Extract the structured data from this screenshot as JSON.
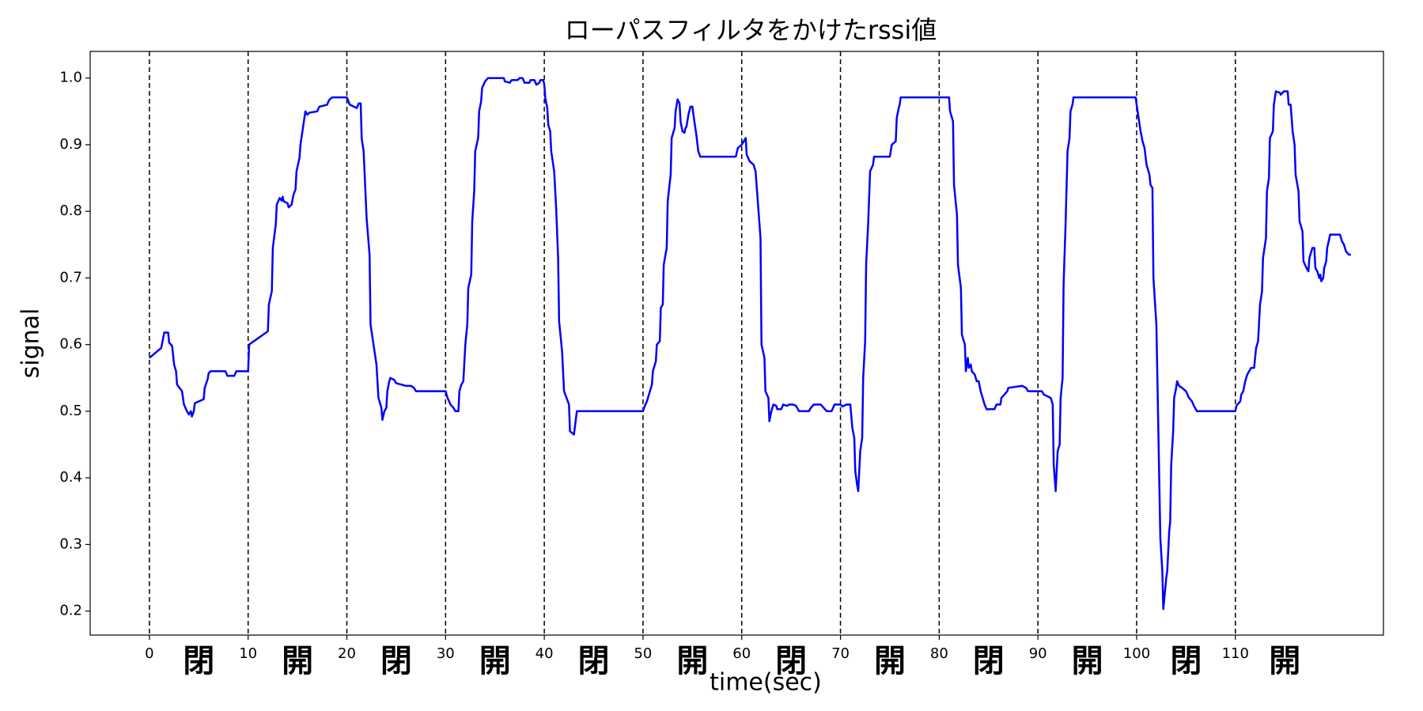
{
  "chart_data": {
    "type": "line",
    "title": "ローパスフィルタをかけたrssi値",
    "x_label": "time(sec)",
    "y_label": "signal",
    "xlim": [
      -6,
      125
    ],
    "ylim": [
      0.164,
      1.04
    ],
    "xticks": [
      0,
      10,
      20,
      30,
      40,
      50,
      60,
      70,
      80,
      90,
      100,
      110
    ],
    "yticks": [
      0.2,
      0.3,
      0.4,
      0.5,
      0.6,
      0.7,
      0.8,
      0.9,
      {
        "value": 1,
        "label": "1.0"
      }
    ],
    "vlines": [
      0,
      10,
      20,
      30,
      40,
      50,
      60,
      70,
      80,
      90,
      100,
      110
    ],
    "vline_color": "#000000",
    "annotations": [
      {
        "x": 5,
        "text": "閉"
      },
      {
        "x": 15,
        "text": "開"
      },
      {
        "x": 25,
        "text": "閉"
      },
      {
        "x": 35,
        "text": "開"
      },
      {
        "x": 45,
        "text": "閉"
      },
      {
        "x": 55,
        "text": "開"
      },
      {
        "x": 65,
        "text": "閉"
      },
      {
        "x": 75,
        "text": "開"
      },
      {
        "x": 85,
        "text": "閉"
      },
      {
        "x": 95,
        "text": "開"
      },
      {
        "x": 105,
        "text": "閉"
      },
      {
        "x": 115,
        "text": "開"
      }
    ],
    "x": [
      0,
      1.2,
      1.5,
      1.9,
      2.0,
      2.3,
      2.5,
      2.7,
      2.8,
      3.3,
      3.5,
      3.8,
      4.0,
      4.2,
      4.3,
      4.5,
      4.6,
      5.5,
      5.6,
      5.9,
      6.0,
      6.2,
      7.7,
      7.9,
      8.6,
      8.8,
      10.0,
      10.1,
      12.0,
      12.1,
      12.4,
      12.5,
      12.8,
      12.9,
      13.2,
      13.4,
      13.5,
      13.6,
      14.0,
      14.1,
      14.4,
      14.6,
      14.8,
      14.9,
      15.2,
      15.3,
      15.6,
      15.8,
      16.0,
      16.2,
      17.0,
      17.2,
      18.0,
      18.2,
      18.5,
      20.0,
      20.3,
      21.0,
      21.2,
      21.4,
      21.5,
      21.7,
      22.0,
      22.3,
      22.4,
      23.0,
      23.2,
      23.5,
      23.6,
      23.8,
      24.0,
      24.1,
      24.3,
      24.4,
      24.8,
      25.0,
      25.5,
      26.0,
      26.5,
      26.8,
      27.0,
      30.0,
      30.2,
      30.5,
      30.8,
      31.0,
      31.3,
      31.4,
      31.6,
      31.8,
      32.0,
      32.2,
      32.3,
      32.6,
      32.7,
      32.9,
      33.0,
      33.3,
      33.4,
      33.6,
      33.7,
      34.0,
      34.3,
      35.9,
      36.0,
      36.5,
      36.7,
      37.3,
      37.5,
      37.8,
      38.0,
      38.5,
      38.6,
      39.0,
      39.2,
      39.5,
      39.6,
      39.9,
      40.0,
      40.1,
      40.3,
      40.4,
      40.6,
      40.7,
      41.0,
      41.2,
      41.4,
      41.5,
      41.8,
      42.0,
      42.5,
      42.6,
      43.0,
      43.3,
      50.0,
      50.1,
      50.4,
      50.6,
      50.9,
      51.0,
      51.3,
      51.4,
      51.7,
      51.8,
      52.0,
      52.1,
      52.4,
      52.5,
      52.8,
      52.9,
      53.2,
      53.3,
      53.5,
      53.7,
      53.8,
      54.0,
      54.2,
      54.3,
      54.4,
      54.6,
      54.8,
      55.0,
      55.2,
      55.4,
      55.6,
      55.8,
      59.4,
      59.6,
      60.0,
      60.2,
      60.4,
      60.5,
      60.8,
      61.2,
      61.4,
      61.7,
      61.9,
      62.0,
      62.3,
      62.4,
      62.7,
      62.8,
      63.0,
      63.2,
      63.5,
      63.6,
      64.0,
      64.2,
      64.6,
      64.8,
      65.2,
      65.5,
      65.8,
      66.8,
      67.0,
      67.3,
      68.0,
      68.3,
      68.6,
      69.1,
      69.4,
      70.0,
      70.2,
      70.6,
      71.0,
      71.2,
      71.4,
      71.5,
      71.7,
      71.8,
      72.0,
      72.2,
      72.3,
      72.5,
      72.6,
      72.8,
      73.0,
      73.3,
      73.4,
      75.0,
      75.2,
      75.6,
      75.7,
      75.9,
      76.0,
      76.1,
      81.0,
      81.1,
      81.4,
      81.5,
      81.8,
      81.9,
      82.2,
      82.3,
      82.6,
      82.7,
      82.9,
      83.0,
      83.2,
      83.3,
      83.6,
      83.8,
      84.0,
      84.2,
      84.4,
      84.6,
      84.8,
      85.6,
      85.8,
      86.2,
      86.3,
      86.6,
      86.9,
      87.0,
      88.4,
      88.8,
      89.0,
      90.4,
      90.6,
      91.3,
      91.5,
      91.6,
      91.8,
      92.0,
      92.2,
      92.3,
      92.5,
      92.6,
      92.8,
      93.0,
      93.2,
      93.3,
      93.5,
      93.6,
      99.9,
      100.0,
      100.2,
      100.4,
      100.6,
      100.8,
      101.0,
      101.3,
      101.4,
      101.6,
      101.7,
      102.0,
      102.2,
      102.4,
      102.6,
      102.7,
      103.0,
      103.1,
      103.3,
      103.4,
      103.5,
      103.7,
      103.8,
      104.0,
      104.1,
      104.3,
      104.6,
      105.0,
      105.3,
      105.6,
      105.8,
      106.1,
      110.0,
      110.1,
      110.5,
      110.6,
      110.8,
      111.0,
      111.2,
      111.4,
      111.6,
      111.9,
      112.1,
      112.3,
      112.5,
      112.7,
      112.8,
      113.1,
      113.2,
      113.4,
      113.5,
      113.8,
      113.9,
      114.1,
      114.5,
      114.6,
      114.9,
      115.3,
      115.4,
      115.6,
      115.8,
      116.0,
      116.1,
      116.4,
      116.5,
      116.8,
      116.9,
      117.2,
      117.4,
      117.5,
      117.8,
      118.0,
      118.1,
      118.3,
      118.5,
      118.6,
      118.7,
      118.9,
      119.0,
      119.2,
      119.3,
      119.6,
      120.6,
      120.8,
      121.0,
      121.2,
      121.5,
      121.7
    ],
    "series": [
      {
        "color": "#0000ff",
        "values": [
          0.58,
          0.595,
          0.618,
          0.618,
          0.603,
          0.598,
          0.57,
          0.56,
          0.54,
          0.53,
          0.51,
          0.5,
          0.495,
          0.5,
          0.492,
          0.5,
          0.512,
          0.518,
          0.535,
          0.548,
          0.557,
          0.56,
          0.56,
          0.553,
          0.553,
          0.56,
          0.56,
          0.6,
          0.62,
          0.66,
          0.68,
          0.745,
          0.78,
          0.81,
          0.82,
          0.816,
          0.822,
          0.815,
          0.812,
          0.806,
          0.81,
          0.825,
          0.833,
          0.86,
          0.88,
          0.9,
          0.93,
          0.95,
          0.945,
          0.948,
          0.95,
          0.957,
          0.96,
          0.967,
          0.971,
          0.971,
          0.96,
          0.955,
          0.962,
          0.962,
          0.91,
          0.89,
          0.79,
          0.735,
          0.63,
          0.57,
          0.52,
          0.505,
          0.487,
          0.5,
          0.505,
          0.53,
          0.545,
          0.55,
          0.547,
          0.542,
          0.54,
          0.538,
          0.538,
          0.535,
          0.53,
          0.53,
          0.52,
          0.51,
          0.505,
          0.5,
          0.5,
          0.53,
          0.54,
          0.545,
          0.6,
          0.63,
          0.685,
          0.705,
          0.785,
          0.83,
          0.89,
          0.91,
          0.95,
          0.965,
          0.985,
          0.995,
          1.0,
          1.0,
          0.995,
          0.993,
          0.997,
          0.997,
          1.0,
          1.0,
          0.993,
          0.993,
          0.997,
          0.997,
          0.99,
          0.993,
          0.997,
          0.997,
          0.99,
          0.97,
          0.955,
          0.93,
          0.92,
          0.89,
          0.86,
          0.805,
          0.73,
          0.635,
          0.59,
          0.53,
          0.51,
          0.47,
          0.465,
          0.5,
          0.5,
          0.505,
          0.515,
          0.525,
          0.54,
          0.56,
          0.575,
          0.6,
          0.605,
          0.655,
          0.66,
          0.72,
          0.745,
          0.815,
          0.855,
          0.91,
          0.925,
          0.95,
          0.968,
          0.962,
          0.935,
          0.92,
          0.918,
          0.925,
          0.927,
          0.945,
          0.957,
          0.957,
          0.935,
          0.915,
          0.89,
          0.882,
          0.882,
          0.895,
          0.9,
          0.905,
          0.91,
          0.885,
          0.875,
          0.87,
          0.86,
          0.8,
          0.76,
          0.6,
          0.58,
          0.53,
          0.52,
          0.485,
          0.5,
          0.51,
          0.508,
          0.503,
          0.503,
          0.51,
          0.508,
          0.51,
          0.51,
          0.508,
          0.5,
          0.5,
          0.505,
          0.51,
          0.51,
          0.505,
          0.5,
          0.5,
          0.51,
          0.51,
          0.507,
          0.51,
          0.51,
          0.475,
          0.46,
          0.41,
          0.388,
          0.38,
          0.44,
          0.46,
          0.55,
          0.605,
          0.72,
          0.78,
          0.86,
          0.87,
          0.882,
          0.882,
          0.9,
          0.905,
          0.94,
          0.955,
          0.96,
          0.971,
          0.971,
          0.95,
          0.935,
          0.84,
          0.795,
          0.72,
          0.685,
          0.615,
          0.6,
          0.56,
          0.58,
          0.565,
          0.57,
          0.56,
          0.555,
          0.545,
          0.545,
          0.53,
          0.52,
          0.51,
          0.503,
          0.503,
          0.51,
          0.51,
          0.52,
          0.525,
          0.53,
          0.535,
          0.538,
          0.535,
          0.53,
          0.53,
          0.525,
          0.52,
          0.51,
          0.42,
          0.38,
          0.44,
          0.45,
          0.52,
          0.55,
          0.69,
          0.78,
          0.89,
          0.91,
          0.95,
          0.96,
          0.971,
          0.971,
          0.96,
          0.94,
          0.92,
          0.905,
          0.895,
          0.87,
          0.855,
          0.84,
          0.835,
          0.7,
          0.63,
          0.47,
          0.31,
          0.26,
          0.203,
          0.25,
          0.26,
          0.32,
          0.335,
          0.42,
          0.47,
          0.52,
          0.535,
          0.545,
          0.538,
          0.535,
          0.53,
          0.52,
          0.515,
          0.508,
          0.5,
          0.5,
          0.508,
          0.515,
          0.525,
          0.53,
          0.545,
          0.555,
          0.56,
          0.565,
          0.565,
          0.595,
          0.605,
          0.66,
          0.68,
          0.73,
          0.76,
          0.83,
          0.85,
          0.91,
          0.92,
          0.96,
          0.98,
          0.978,
          0.975,
          0.98,
          0.98,
          0.96,
          0.96,
          0.92,
          0.9,
          0.855,
          0.83,
          0.785,
          0.77,
          0.725,
          0.715,
          0.71,
          0.73,
          0.745,
          0.745,
          0.715,
          0.71,
          0.7,
          0.705,
          0.695,
          0.7,
          0.715,
          0.725,
          0.745,
          0.765,
          0.765,
          0.755,
          0.75,
          0.74,
          0.735,
          0.735
        ]
      }
    ]
  }
}
